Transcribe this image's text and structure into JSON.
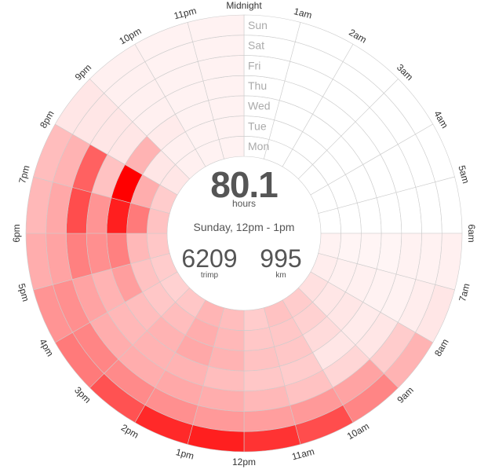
{
  "center": {
    "total_value": "80.1",
    "total_label": "hours",
    "selection": "Sunday, 12pm - 1pm",
    "trimp_value": "6209",
    "trimp_label": "trimp",
    "km_value": "995",
    "km_label": "km"
  },
  "colors": {
    "accent": "#ff0000",
    "empty": "#ffffff",
    "grid": "#cccccc",
    "text": "#555555",
    "day_label": "#aaaaaa"
  },
  "chart_data": {
    "type": "heatmap",
    "layout": "radial",
    "hours": [
      "Midnight",
      "1am",
      "2am",
      "3am",
      "4am",
      "5am",
      "6am",
      "7am",
      "8am",
      "9am",
      "10am",
      "11am",
      "12pm",
      "1pm",
      "2pm",
      "3pm",
      "4pm",
      "5pm",
      "6pm",
      "7pm",
      "8pm",
      "9pm",
      "10pm",
      "11pm"
    ],
    "days": [
      "Mon",
      "Tue",
      "Wed",
      "Thu",
      "Fri",
      "Sat",
      "Sun"
    ],
    "value_scale": "relative intensity 0-1",
    "values": [
      [
        0,
        0,
        0,
        0,
        0,
        0,
        0.05,
        0.07,
        0.12,
        0.2,
        0.24,
        0.2,
        0.26,
        0.29,
        0.22,
        0.18,
        0.2,
        0.22,
        0.24,
        0.2,
        0.1,
        0.06,
        0.05,
        0.05
      ],
      [
        0,
        0,
        0,
        0,
        0,
        0,
        0.04,
        0.06,
        0.1,
        0.18,
        0.22,
        0.22,
        0.28,
        0.32,
        0.26,
        0.22,
        0.24,
        0.28,
        0.52,
        0.32,
        0.1,
        0.06,
        0.05,
        0.05
      ],
      [
        0,
        0,
        0,
        0,
        0,
        0,
        0.04,
        0.06,
        0.1,
        0.14,
        0.22,
        0.24,
        0.3,
        0.34,
        0.3,
        0.26,
        0.38,
        0.5,
        0.88,
        1.0,
        0.3,
        0.08,
        0.05,
        0.05
      ],
      [
        0,
        0,
        0,
        0,
        0,
        0,
        0.04,
        0.05,
        0.08,
        0.1,
        0.2,
        0.22,
        0.26,
        0.3,
        0.3,
        0.28,
        0.3,
        0.44,
        0.42,
        0.24,
        0.1,
        0.06,
        0.05,
        0.05
      ],
      [
        0,
        0,
        0,
        0,
        0,
        0,
        0.05,
        0.05,
        0.1,
        0.16,
        0.24,
        0.28,
        0.32,
        0.34,
        0.32,
        0.32,
        0.36,
        0.5,
        0.7,
        0.62,
        0.1,
        0.06,
        0.05,
        0.05
      ],
      [
        0,
        0,
        0,
        0,
        0,
        0,
        0.05,
        0.07,
        0.2,
        0.36,
        0.4,
        0.38,
        0.4,
        0.44,
        0.46,
        0.48,
        0.44,
        0.36,
        0.34,
        0.3,
        0.1,
        0.06,
        0.05,
        0.05
      ],
      [
        0,
        0,
        0,
        0,
        0,
        0,
        0.06,
        0.1,
        0.3,
        0.48,
        0.7,
        0.8,
        0.88,
        0.84,
        0.68,
        0.52,
        0.42,
        0.32,
        0.28,
        0.26,
        0.1,
        0.06,
        0.05,
        0.05
      ]
    ]
  }
}
